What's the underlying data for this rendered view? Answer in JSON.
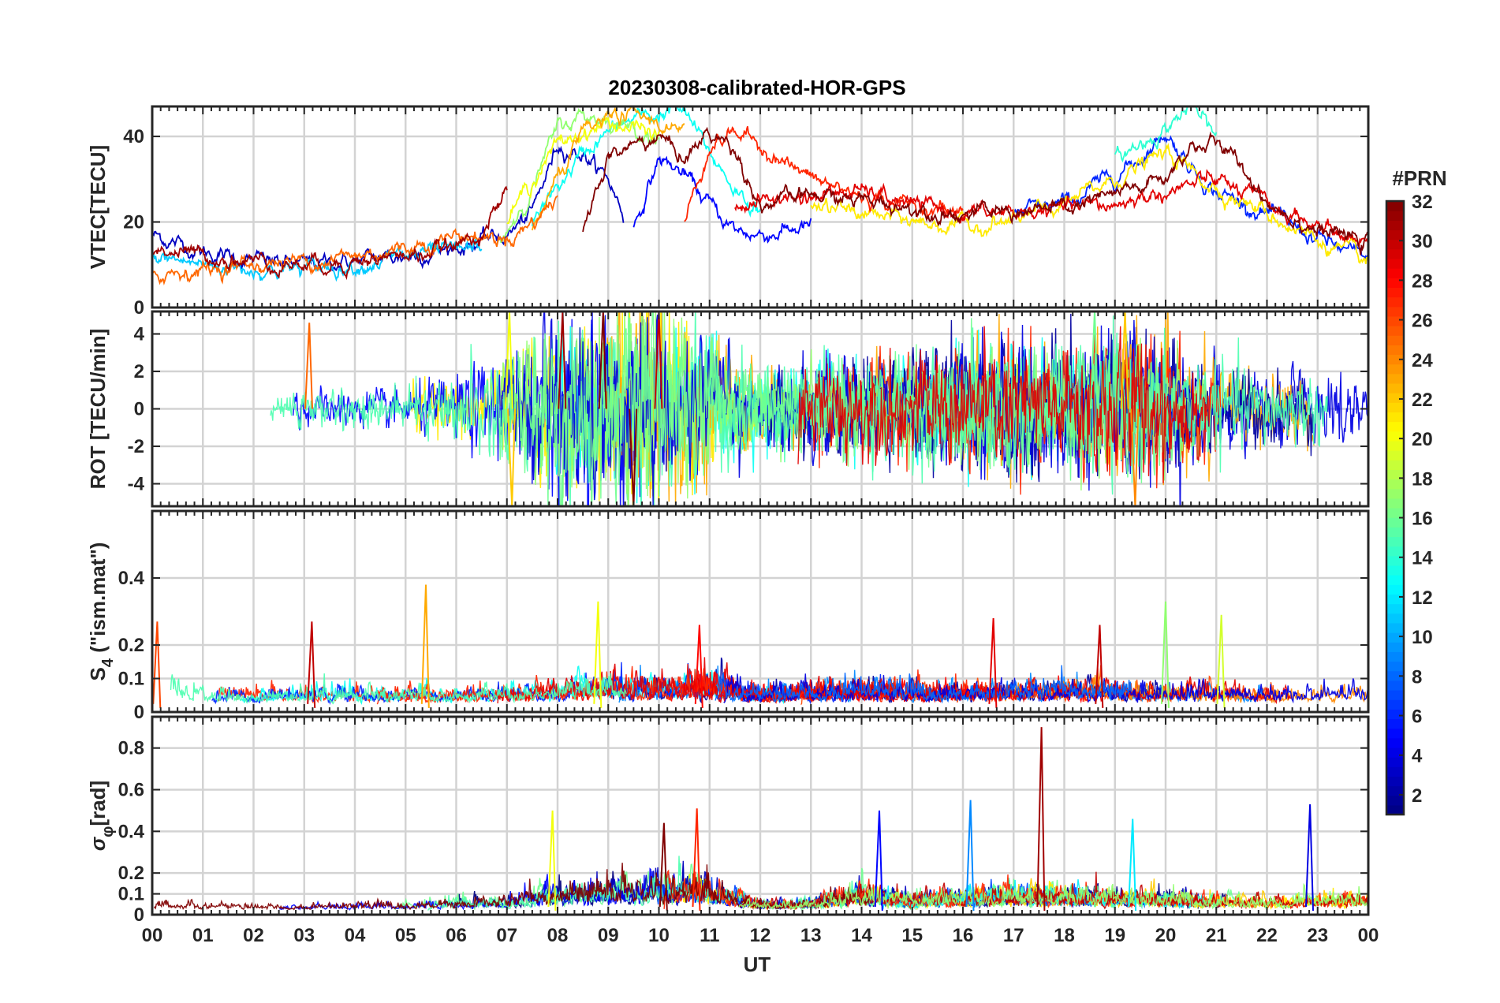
{
  "chart_data": {
    "type": "line",
    "title": "20230308-calibrated-HOR-GPS",
    "xlabel": "UT",
    "xlim": [
      0,
      24
    ],
    "xtick_labels": [
      "00",
      "01",
      "02",
      "03",
      "04",
      "05",
      "06",
      "07",
      "08",
      "09",
      "10",
      "11",
      "12",
      "13",
      "14",
      "15",
      "16",
      "17",
      "18",
      "19",
      "20",
      "21",
      "22",
      "23",
      "00"
    ],
    "grid": true,
    "panels": [
      {
        "id": "vtec",
        "ylabel": "VTEC[TECU]",
        "ylim": [
          0,
          47
        ],
        "yticks": [
          0,
          20,
          40
        ],
        "ytick_labels": [
          "0",
          "20",
          "40"
        ],
        "series": [
          {
            "prn": 3,
            "x": [
              0,
              1,
              2,
              3,
              4,
              5,
              6,
              7,
              7.5,
              8,
              8.5,
              9,
              9.3
            ],
            "y": [
              17,
              13,
              11,
              10,
              11,
              12,
              14,
              17,
              22,
              38,
              36,
              30,
              22
            ]
          },
          {
            "prn": 5,
            "x": [
              9.5,
              10,
              10.5,
              11,
              11.5,
              12,
              13
            ],
            "y": [
              18,
              35,
              31,
              24,
              18,
              17,
              19
            ]
          },
          {
            "prn": 6,
            "x": [
              17,
              18,
              19,
              19.5,
              20,
              20.5,
              21,
              22,
              23,
              24
            ],
            "y": [
              22,
              24,
              31,
              35,
              41,
              33,
              27,
              22,
              16,
              11
            ]
          },
          {
            "prn": 11,
            "x": [
              0,
              1,
              2,
              3,
              4,
              5,
              6,
              6.5
            ],
            "y": [
              12,
              10,
              9,
              9,
              10,
              12,
              13,
              14
            ]
          },
          {
            "prn": 13,
            "x": [
              7.5,
              8,
              8.5,
              9,
              9.5,
              10,
              10.3,
              10.6,
              11,
              11.5,
              12
            ],
            "y": [
              20,
              28,
              36,
              41,
              44,
              45,
              47,
              44,
              36,
              28,
              22
            ]
          },
          {
            "prn": 14,
            "x": [
              19,
              19.5,
              20,
              20.5,
              21
            ],
            "y": [
              35,
              38,
              42,
              47,
              40
            ]
          },
          {
            "prn": 17,
            "x": [
              6.8,
              7.5,
              8,
              8.5,
              9,
              9.5,
              10
            ],
            "y": [
              14,
              28,
              42,
              45,
              44,
              42,
              40
            ]
          },
          {
            "prn": 20,
            "x": [
              7,
              7.5,
              8,
              8.5,
              9,
              9.5,
              10
            ],
            "y": [
              20,
              30,
              38,
              41,
              43,
              42,
              40
            ]
          },
          {
            "prn": 21,
            "x": [
              13,
              14,
              15,
              16,
              17,
              18,
              19,
              20,
              21,
              22,
              23,
              24
            ],
            "y": [
              24,
              22,
              20,
              19,
              20,
              24,
              30,
              36,
              28,
              22,
              16,
              10
            ]
          },
          {
            "prn": 23,
            "x": [
              7.5,
              8,
              8.5,
              9,
              9.5,
              10,
              10.5
            ],
            "y": [
              18,
              30,
              40,
              44,
              45,
              43,
              40
            ]
          },
          {
            "prn": 25,
            "x": [
              0,
              1,
              2,
              3,
              4,
              5,
              6,
              7,
              7.5,
              8
            ],
            "y": [
              8,
              9,
              10,
              11,
              12,
              14,
              17,
              16,
              20,
              26
            ]
          },
          {
            "prn": 27,
            "x": [
              10.5,
              11,
              11.5,
              12,
              12.5,
              13,
              14,
              15,
              16
            ],
            "y": [
              20,
              38,
              41,
              38,
              34,
              30,
              26,
              24,
              22
            ]
          },
          {
            "prn": 29,
            "x": [
              11.5,
              12,
              13,
              14,
              15,
              16,
              17,
              18,
              19,
              20,
              21,
              22,
              23,
              24
            ],
            "y": [
              24,
              25,
              26,
              27,
              24,
              22,
              22,
              23,
              24,
              27,
              30,
              24,
              19,
              15
            ]
          },
          {
            "prn": 31,
            "x": [
              0,
              1,
              2,
              3,
              4,
              5,
              6,
              6.5,
              7
            ],
            "y": [
              14,
              12,
              11,
              10,
              11,
              12,
              14,
              18,
              26
            ]
          },
          {
            "prn": 32,
            "x": [
              8.5,
              9,
              9.5,
              10,
              10.5,
              11,
              11.5,
              12,
              13,
              14,
              16,
              18,
              19,
              20,
              20.5,
              21,
              21.5,
              22,
              23,
              24
            ],
            "y": [
              18,
              35,
              38,
              40,
              35,
              41,
              37,
              24,
              26,
              25,
              22,
              23,
              26,
              30,
              38,
              38,
              33,
              25,
              18,
              15
            ]
          }
        ]
      },
      {
        "id": "rot",
        "ylabel": "ROT [TECU/min]",
        "ylim": [
          -5.2,
          5.2
        ],
        "yticks": [
          -4,
          -2,
          0,
          2,
          4
        ],
        "ytick_labels": [
          "-4",
          "-2",
          "0",
          "2",
          "4"
        ],
        "envelope": {
          "description": "Dense multi-PRN rate-of-TEC fluctuations; amplitude by hour",
          "x": [
            0,
            1,
            2,
            3,
            4,
            5,
            6,
            7,
            8,
            9,
            10,
            11,
            12,
            13,
            14,
            15,
            16,
            17,
            18,
            19,
            20,
            21,
            22,
            23,
            24
          ],
          "amplitude": [
            1.4,
            1.3,
            1.0,
            1.1,
            1.0,
            1.2,
            1.9,
            2.9,
            4.5,
            5.0,
            5.2,
            3.6,
            2.0,
            2.4,
            2.5,
            2.6,
            3.0,
            3.4,
            3.0,
            4.0,
            3.3,
            2.6,
            2.0,
            1.8,
            1.8
          ]
        },
        "spikes": [
          {
            "x": 3.1,
            "y": 4.6,
            "prn": 25
          },
          {
            "x": 7.05,
            "y": 5.2,
            "prn": 20
          },
          {
            "x": 7.1,
            "y": -5.2,
            "prn": 22
          },
          {
            "x": 8.1,
            "y": 5.2,
            "prn": 31
          },
          {
            "x": 8.9,
            "y": 5.2,
            "prn": 32
          },
          {
            "x": 9.5,
            "y": -5.2,
            "prn": 32
          },
          {
            "x": 10.0,
            "y": 5.2,
            "prn": 30
          },
          {
            "x": 18.6,
            "y": 5.2,
            "prn": 16
          },
          {
            "x": 19.2,
            "y": 5.2,
            "prn": 22
          },
          {
            "x": 19.4,
            "y": -5.2,
            "prn": 24
          }
        ]
      },
      {
        "id": "s4",
        "ylabel": "S4 (\"ism.mat\")",
        "ylabel_main": "S",
        "ylabel_sub": "4",
        "ylabel_rest": " (\"ism.mat\")",
        "ylim": [
          0,
          0.6
        ],
        "yticks": [
          0,
          0.1,
          0.2,
          0.4
        ],
        "ytick_labels": [
          "0",
          "0.1",
          "0.2",
          "0.4"
        ],
        "envelope": {
          "x": [
            0,
            1,
            2,
            3,
            4,
            5,
            6,
            7,
            8,
            9,
            10,
            11,
            12,
            13,
            14,
            15,
            16,
            17,
            18,
            19,
            20,
            21,
            22,
            23,
            24
          ],
          "amplitude": [
            0.16,
            0.12,
            0.08,
            0.1,
            0.09,
            0.1,
            0.09,
            0.1,
            0.13,
            0.18,
            0.15,
            0.17,
            0.1,
            0.12,
            0.13,
            0.12,
            0.11,
            0.12,
            0.13,
            0.12,
            0.12,
            0.11,
            0.1,
            0.1,
            0.1
          ]
        },
        "spikes": [
          {
            "x": 0.1,
            "y": 0.27,
            "prn": 26
          },
          {
            "x": 3.15,
            "y": 0.27,
            "prn": 30
          },
          {
            "x": 5.4,
            "y": 0.38,
            "prn": 23
          },
          {
            "x": 8.8,
            "y": 0.33,
            "prn": 20
          },
          {
            "x": 10.8,
            "y": 0.26,
            "prn": 28
          },
          {
            "x": 16.6,
            "y": 0.28,
            "prn": 29
          },
          {
            "x": 18.7,
            "y": 0.26,
            "prn": 30
          },
          {
            "x": 20.0,
            "y": 0.33,
            "prn": 17
          },
          {
            "x": 21.1,
            "y": 0.29,
            "prn": 19
          }
        ]
      },
      {
        "id": "sigma_phi",
        "ylabel": "σφ[rad]",
        "ylabel_main": "σ",
        "ylabel_sub": "φ",
        "ylabel_rest": "[rad]",
        "ylim": [
          0,
          0.95
        ],
        "yticks": [
          0,
          0.1,
          0.2,
          0.4,
          0.6,
          0.8
        ],
        "ytick_labels": [
          "0",
          "0.1",
          "0.2",
          "0.4",
          "0.6",
          "0.8"
        ],
        "envelope": {
          "x": [
            0,
            1,
            2,
            3,
            4,
            5,
            6,
            7,
            8,
            9,
            10,
            11,
            12,
            13,
            14,
            15,
            16,
            17,
            18,
            19,
            20,
            21,
            22,
            23,
            24
          ],
          "amplitude": [
            0.1,
            0.08,
            0.06,
            0.05,
            0.06,
            0.08,
            0.1,
            0.12,
            0.22,
            0.25,
            0.3,
            0.28,
            0.08,
            0.1,
            0.22,
            0.14,
            0.18,
            0.22,
            0.2,
            0.18,
            0.15,
            0.14,
            0.12,
            0.14,
            0.16
          ]
        },
        "spikes": [
          {
            "x": 7.9,
            "y": 0.5,
            "prn": 20
          },
          {
            "x": 10.75,
            "y": 0.51,
            "prn": 27
          },
          {
            "x": 10.1,
            "y": 0.44,
            "prn": 32
          },
          {
            "x": 14.35,
            "y": 0.5,
            "prn": 5
          },
          {
            "x": 16.15,
            "y": 0.55,
            "prn": 9
          },
          {
            "x": 17.55,
            "y": 0.9,
            "prn": 31
          },
          {
            "x": 19.35,
            "y": 0.46,
            "prn": 12
          },
          {
            "x": 22.85,
            "y": 0.53,
            "prn": 4
          }
        ]
      }
    ],
    "colorbar": {
      "label": "#PRN",
      "colormap": "jet",
      "range": [
        1,
        32
      ],
      "ticks": [
        2,
        4,
        6,
        8,
        10,
        12,
        14,
        16,
        18,
        20,
        22,
        24,
        26,
        28,
        30,
        32
      ],
      "tick_labels": [
        "2",
        "4",
        "6",
        "8",
        "10",
        "12",
        "14",
        "16",
        "18",
        "20",
        "22",
        "24",
        "26",
        "28",
        "30",
        "32"
      ]
    }
  }
}
